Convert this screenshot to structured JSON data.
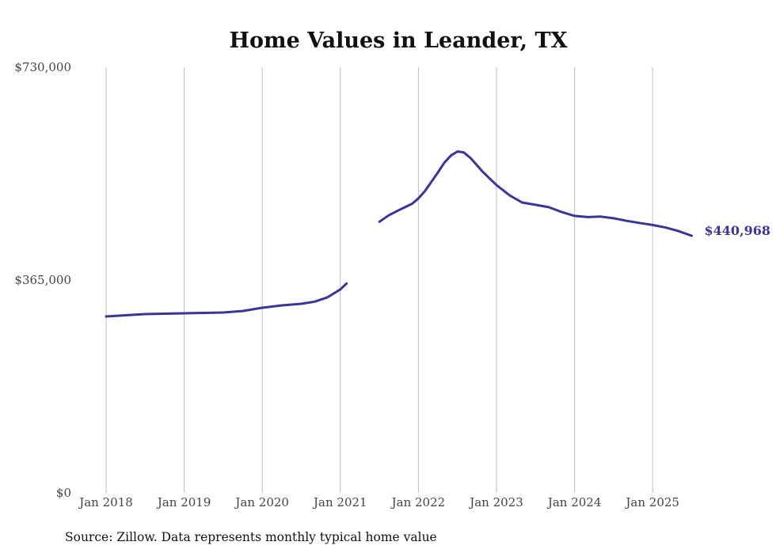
{
  "chart_data": {
    "type": "line",
    "title": "Home Values in Leander, TX",
    "xlabel": "",
    "ylabel": "",
    "ylim": [
      0,
      730000
    ],
    "xlim": [
      2018.0,
      2025.5
    ],
    "y_ticks": [
      {
        "value": 0,
        "label": "$0"
      },
      {
        "value": 365000,
        "label": "$365,000"
      },
      {
        "value": 730000,
        "label": "$730,000"
      }
    ],
    "x_ticks": [
      {
        "value": 2018,
        "label": "Jan 2018"
      },
      {
        "value": 2019,
        "label": "Jan 2019"
      },
      {
        "value": 2020,
        "label": "Jan 2020"
      },
      {
        "value": 2021,
        "label": "Jan 2021"
      },
      {
        "value": 2022,
        "label": "Jan 2022"
      },
      {
        "value": 2023,
        "label": "Jan 2023"
      },
      {
        "value": 2024,
        "label": "Jan 2024"
      },
      {
        "value": 2025,
        "label": "Jan 2025"
      }
    ],
    "grid": "vertical",
    "line_color": "#3b3596",
    "series": [
      {
        "name": "Typical home value",
        "segments": [
          [
            [
              2018.0,
              302600
            ],
            [
              2018.5,
              306600
            ],
            [
              2019.0,
              308000
            ],
            [
              2019.5,
              309400
            ],
            [
              2019.75,
              312000
            ],
            [
              2020.0,
              317500
            ],
            [
              2020.25,
              321600
            ],
            [
              2020.5,
              324300
            ],
            [
              2020.67,
              328000
            ],
            [
              2020.83,
              335000
            ],
            [
              2021.0,
              349000
            ],
            [
              2021.08,
              359000
            ]
          ],
          [
            [
              2021.5,
              465000
            ],
            [
              2021.62,
              476000
            ],
            [
              2021.75,
              485000
            ],
            [
              2021.92,
              496000
            ],
            [
              2022.0,
              505000
            ],
            [
              2022.08,
              517000
            ],
            [
              2022.25,
              549500
            ],
            [
              2022.33,
              566000
            ],
            [
              2022.42,
              579000
            ],
            [
              2022.5,
              585500
            ],
            [
              2022.58,
              584000
            ],
            [
              2022.67,
              574000
            ],
            [
              2022.83,
              550000
            ],
            [
              2023.0,
              528000
            ],
            [
              2023.17,
              510000
            ],
            [
              2023.33,
              498000
            ],
            [
              2023.5,
              494000
            ],
            [
              2023.67,
              490000
            ],
            [
              2023.83,
              482000
            ],
            [
              2024.0,
              475000
            ],
            [
              2024.17,
              473000
            ],
            [
              2024.33,
              474000
            ],
            [
              2024.5,
              471000
            ],
            [
              2024.67,
              466500
            ],
            [
              2024.83,
              463000
            ],
            [
              2025.0,
              459500
            ],
            [
              2025.17,
              455000
            ],
            [
              2025.33,
              449000
            ],
            [
              2025.5,
              440968
            ]
          ]
        ]
      }
    ],
    "end_label": "$440,968",
    "source": "Source: Zillow. Data represents monthly typical home value"
  }
}
